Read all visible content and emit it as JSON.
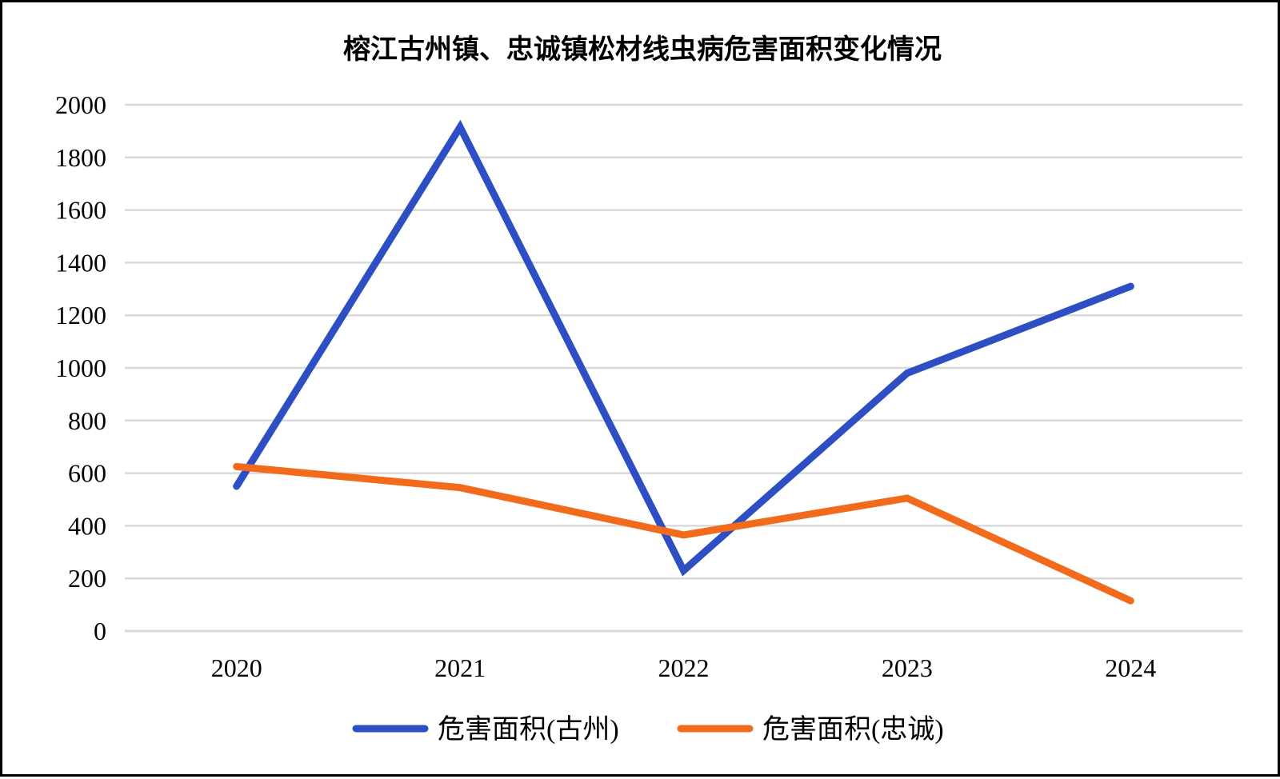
{
  "chart_data": {
    "type": "line",
    "title": "榕江古州镇、忠诚镇松材线虫病危害面积变化情况",
    "xlabel": "",
    "ylabel": "",
    "categories": [
      "2020",
      "2021",
      "2022",
      "2023",
      "2024"
    ],
    "ylim": [
      0,
      2000
    ],
    "yticks": [
      "0",
      "200",
      "400",
      "600",
      "800",
      "1000",
      "1200",
      "1400",
      "1600",
      "1800",
      "2000"
    ],
    "grid": true,
    "legend_position": "bottom",
    "series": [
      {
        "name": "危害面积(古州)",
        "color": "#2E4EC4",
        "values": [
          550,
          1915,
          230,
          980,
          1310
        ]
      },
      {
        "name": "危害面积(忠诚)",
        "color": "#F26B1D",
        "values": [
          625,
          545,
          365,
          505,
          115
        ]
      }
    ]
  },
  "colors": {
    "grid": "#D9D9D9",
    "border": "#000000"
  }
}
